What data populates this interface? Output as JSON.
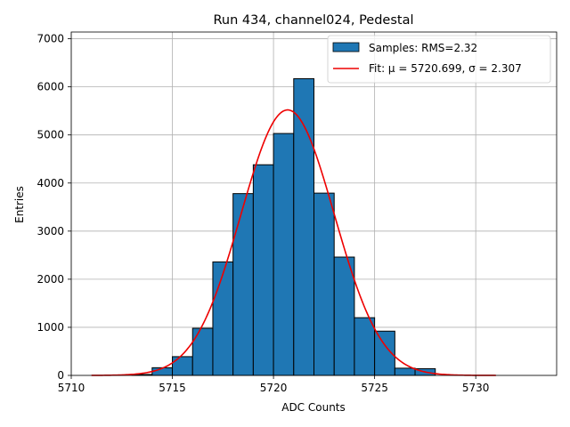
{
  "chart_data": {
    "type": "bar",
    "title": "Run 434, channel024, Pedestal",
    "xlabel": "ADC Counts",
    "ylabel": "Entries",
    "xlim": [
      5710,
      5734
    ],
    "ylim": [
      0,
      7140
    ],
    "xticks": [
      5710,
      5715,
      5720,
      5725,
      5730
    ],
    "yticks": [
      0,
      1000,
      2000,
      3000,
      4000,
      5000,
      6000,
      7000
    ],
    "grid": true,
    "legend_position": "top-right",
    "histogram": {
      "name": "Samples: RMS=2.32",
      "color": "#1f77b4",
      "edgecolor": "#000000",
      "bin_width": 1,
      "bin_starts": [
        5713,
        5714,
        5715,
        5716,
        5717,
        5718,
        5719,
        5720,
        5721,
        5722,
        5723,
        5724,
        5725,
        5726,
        5727
      ],
      "counts": [
        20,
        160,
        390,
        980,
        2360,
        3780,
        4380,
        5030,
        6170,
        3790,
        2460,
        1200,
        920,
        150,
        140
      ]
    },
    "fit": {
      "name": "Fit: μ = 5720.699, σ = 2.307",
      "color": "#ee0000",
      "mu": 5720.699,
      "sigma": 2.307,
      "amplitude": 5520,
      "x_range": [
        5711,
        5731
      ]
    }
  }
}
